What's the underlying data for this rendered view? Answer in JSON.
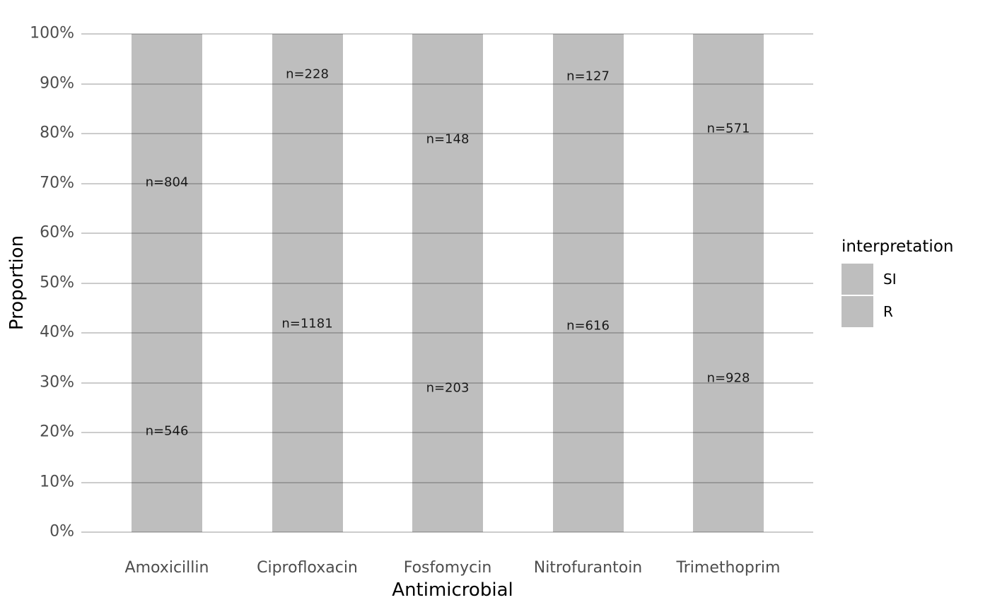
{
  "figure": {
    "background": "#ffffff"
  },
  "colors": {
    "bar_fill": "#bebebe",
    "legend_swatch": "#bebebe",
    "grid_line": "rgba(0,0,0,0.2)",
    "tick_label": "#4d4d4d",
    "bar_label": "#1a1a1a",
    "axis_title": "#000000"
  },
  "chart_data": {
    "type": "bar",
    "variant": "stacked-100percent",
    "title": "",
    "xlabel": "Antimicrobial",
    "ylabel": "Proportion",
    "categories": [
      "Amoxicillin",
      "Ciprofloxacin",
      "Fosfomycin",
      "Nitrofurantoin",
      "Trimethoprim"
    ],
    "series": [
      {
        "name": "R",
        "stack_position": "bottom",
        "counts": [
          546,
          1181,
          203,
          616,
          928
        ],
        "proportions_pct": [
          40.44,
          83.82,
          57.83,
          82.91,
          61.91
        ],
        "labels": [
          "n=546",
          "n=1181",
          "n=203",
          "n=616",
          "n=928"
        ]
      },
      {
        "name": "SI",
        "stack_position": "top",
        "counts": [
          804,
          228,
          148,
          127,
          571
        ],
        "proportions_pct": [
          59.56,
          16.18,
          42.17,
          17.09,
          38.09
        ],
        "labels": [
          "n=804",
          "n=228",
          "n=148",
          "n=127",
          "n=571"
        ]
      }
    ],
    "y_ticks_pct": [
      0,
      10,
      20,
      30,
      40,
      50,
      60,
      70,
      80,
      90,
      100
    ],
    "y_tick_labels": [
      "0%",
      "10%",
      "20%",
      "30%",
      "40%",
      "50%",
      "60%",
      "70%",
      "80%",
      "90%",
      "100%"
    ],
    "ylim": [
      0,
      100
    ],
    "grid": "major-horizontal-over-bars",
    "legend": {
      "title": "interpretation",
      "position": "right",
      "entries": [
        "SI",
        "R"
      ]
    }
  }
}
